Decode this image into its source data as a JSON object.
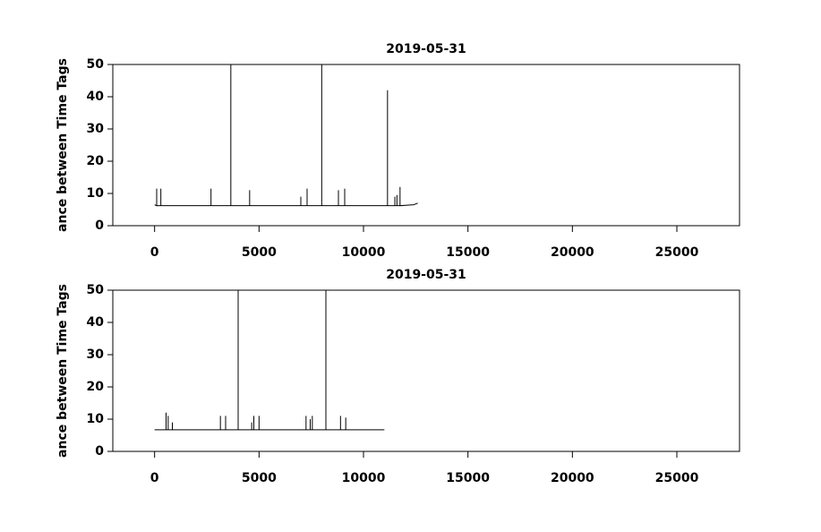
{
  "chart_data": [
    {
      "type": "line",
      "title": "2019-05-31",
      "y_label": "ance between Time Tags",
      "xlim": [
        -2000,
        28000
      ],
      "ylim": [
        0,
        50
      ],
      "xticks": [
        0,
        5000,
        10000,
        15000,
        20000,
        25000
      ],
      "yticks": [
        0,
        10,
        20,
        30,
        40,
        50
      ],
      "color": "#000000",
      "x": [
        0,
        100,
        100,
        100,
        300,
        300,
        300,
        2700,
        2700,
        2700,
        3650,
        3650,
        3650,
        4550,
        4550,
        4550,
        7000,
        7000,
        7000,
        7300,
        7300,
        7300,
        8000,
        8000,
        8000,
        8800,
        8800,
        8800,
        9100,
        9100,
        9100,
        11150,
        11150,
        11150,
        11500,
        11500,
        11500,
        11600,
        11600,
        11600,
        11750,
        11750,
        11750,
        12400,
        12600
      ],
      "values": [
        6.5,
        6.2,
        11.5,
        6.2,
        6.2,
        11.5,
        6.2,
        6.2,
        11.5,
        6.2,
        6.2,
        50,
        6.2,
        6.2,
        11,
        6.2,
        6.2,
        9,
        6.2,
        6.2,
        11.5,
        6.2,
        6.2,
        50,
        6.2,
        6.2,
        11,
        6.2,
        6.2,
        11.5,
        6.2,
        6.2,
        42,
        6.2,
        6.2,
        9,
        6.2,
        6.2,
        9.5,
        6.2,
        6.2,
        12,
        6.2,
        6.5,
        7
      ]
    },
    {
      "type": "line",
      "title": "2019-05-31",
      "y_label": "ance between Time Tags",
      "xlim": [
        -2000,
        28000
      ],
      "ylim": [
        0,
        50
      ],
      "xticks": [
        0,
        5000,
        10000,
        15000,
        20000,
        25000
      ],
      "yticks": [
        0,
        10,
        20,
        30,
        40,
        50
      ],
      "color": "#000000",
      "x": [
        0,
        550,
        550,
        550,
        650,
        650,
        650,
        850,
        850,
        850,
        3150,
        3150,
        3150,
        3400,
        3400,
        3400,
        4000,
        4000,
        4000,
        4650,
        4650,
        4650,
        4750,
        4750,
        4750,
        5000,
        5000,
        5000,
        7250,
        7250,
        7250,
        7450,
        7450,
        7450,
        7550,
        7550,
        7550,
        8200,
        8200,
        8200,
        8900,
        8900,
        8900,
        9150,
        9150,
        9150,
        11000
      ],
      "values": [
        6.7,
        6.7,
        12,
        6.7,
        6.7,
        11,
        6.7,
        6.7,
        9,
        6.7,
        6.7,
        11,
        6.7,
        6.7,
        11,
        6.7,
        6.7,
        50,
        6.7,
        6.7,
        9,
        6.7,
        6.7,
        11,
        6.7,
        6.7,
        11,
        6.7,
        6.7,
        11,
        6.7,
        6.7,
        10,
        6.7,
        6.7,
        11,
        6.7,
        6.7,
        50,
        6.7,
        6.7,
        11,
        6.7,
        6.7,
        10.5,
        6.7,
        6.7
      ]
    }
  ]
}
